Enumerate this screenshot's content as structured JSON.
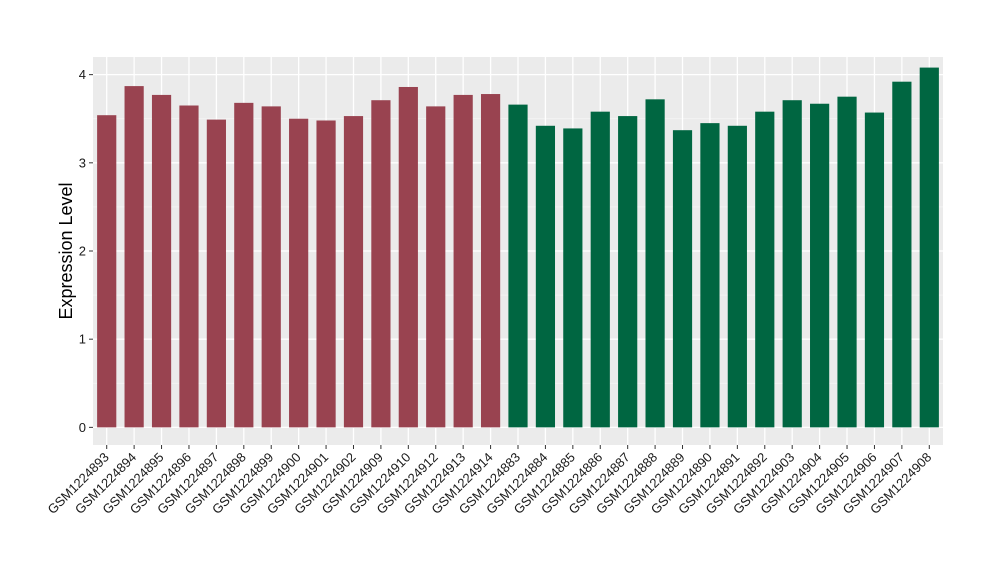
{
  "chart_data": {
    "type": "bar",
    "title": "",
    "xlabel": "",
    "ylabel": "Expression Level",
    "ylim": [
      -0.2,
      4.2
    ],
    "yticks": [
      0,
      1,
      2,
      3,
      4
    ],
    "grid": true,
    "panel_background": "#ebebeb",
    "grid_color": "#ffffff",
    "categories": [
      "GSM1224893",
      "GSM1224894",
      "GSM1224895",
      "GSM1224896",
      "GSM1224897",
      "GSM1224898",
      "GSM1224899",
      "GSM1224900",
      "GSM1224901",
      "GSM1224902",
      "GSM1224909",
      "GSM1224910",
      "GSM1224912",
      "GSM1224913",
      "GSM1224914",
      "GSM1224883",
      "GSM1224884",
      "GSM1224885",
      "GSM1224886",
      "GSM1224887",
      "GSM1224888",
      "GSM1224889",
      "GSM1224890",
      "GSM1224891",
      "GSM1224892",
      "GSM1224903",
      "GSM1224904",
      "GSM1224905",
      "GSM1224906",
      "GSM1224907",
      "GSM1224908"
    ],
    "values": [
      3.54,
      3.87,
      3.77,
      3.65,
      3.49,
      3.68,
      3.64,
      3.5,
      3.48,
      3.53,
      3.71,
      3.86,
      3.64,
      3.77,
      3.78,
      3.66,
      3.42,
      3.39,
      3.58,
      3.53,
      3.72,
      3.37,
      3.45,
      3.42,
      3.58,
      3.71,
      3.67,
      3.75,
      3.57,
      3.92,
      4.08
    ],
    "colors": [
      "#994350",
      "#994350",
      "#994350",
      "#994350",
      "#994350",
      "#994350",
      "#994350",
      "#994350",
      "#994350",
      "#994350",
      "#994350",
      "#994350",
      "#994350",
      "#994350",
      "#994350",
      "#006641",
      "#006641",
      "#006641",
      "#006641",
      "#006641",
      "#006641",
      "#006641",
      "#006641",
      "#006641",
      "#006641",
      "#006641",
      "#006641",
      "#006641",
      "#006641",
      "#006641",
      "#006641"
    ]
  }
}
